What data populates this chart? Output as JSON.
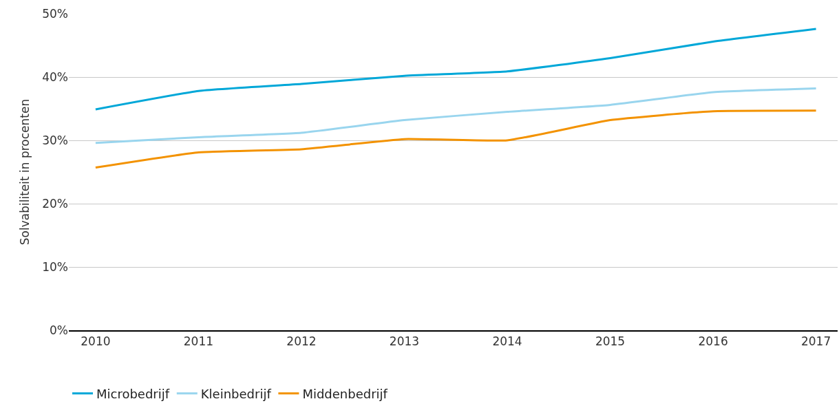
{
  "chart_data": {
    "type": "line",
    "ylabel": "Solvabiliteit in procenten",
    "x": [
      2010,
      2011,
      2012,
      2013,
      2014,
      2015,
      2016,
      2017
    ],
    "series": [
      {
        "name": "Microbedrijf",
        "color": "#00a7d8",
        "values": [
          34.9,
          37.8,
          38.9,
          40.2,
          40.9,
          43.0,
          45.6,
          47.6
        ]
      },
      {
        "name": "Kleinbedrijf",
        "color": "#99d5ee",
        "values": [
          29.6,
          30.5,
          31.2,
          33.2,
          34.5,
          35.6,
          37.6,
          38.2
        ]
      },
      {
        "name": "Middenbedrijf",
        "color": "#f39200",
        "values": [
          25.7,
          28.1,
          28.6,
          30.2,
          30.0,
          33.2,
          34.6,
          34.7
        ]
      }
    ],
    "xlim": [
      2009.74,
      2017.21
    ],
    "xticks": [
      2010,
      2011,
      2012,
      2013,
      2014,
      2015,
      2016,
      2017
    ],
    "ylim": [
      0,
      50
    ],
    "yticks": [
      {
        "value": 0,
        "label": "0%"
      },
      {
        "value": 10,
        "label": "10%"
      },
      {
        "value": 20,
        "label": "20%"
      },
      {
        "value": 30,
        "label": "30%"
      },
      {
        "value": 40,
        "label": "40%"
      },
      {
        "value": 50,
        "label": "50%"
      }
    ],
    "grid": "y",
    "legend": "bottom left",
    "marker": "none",
    "line_style": "solid"
  }
}
